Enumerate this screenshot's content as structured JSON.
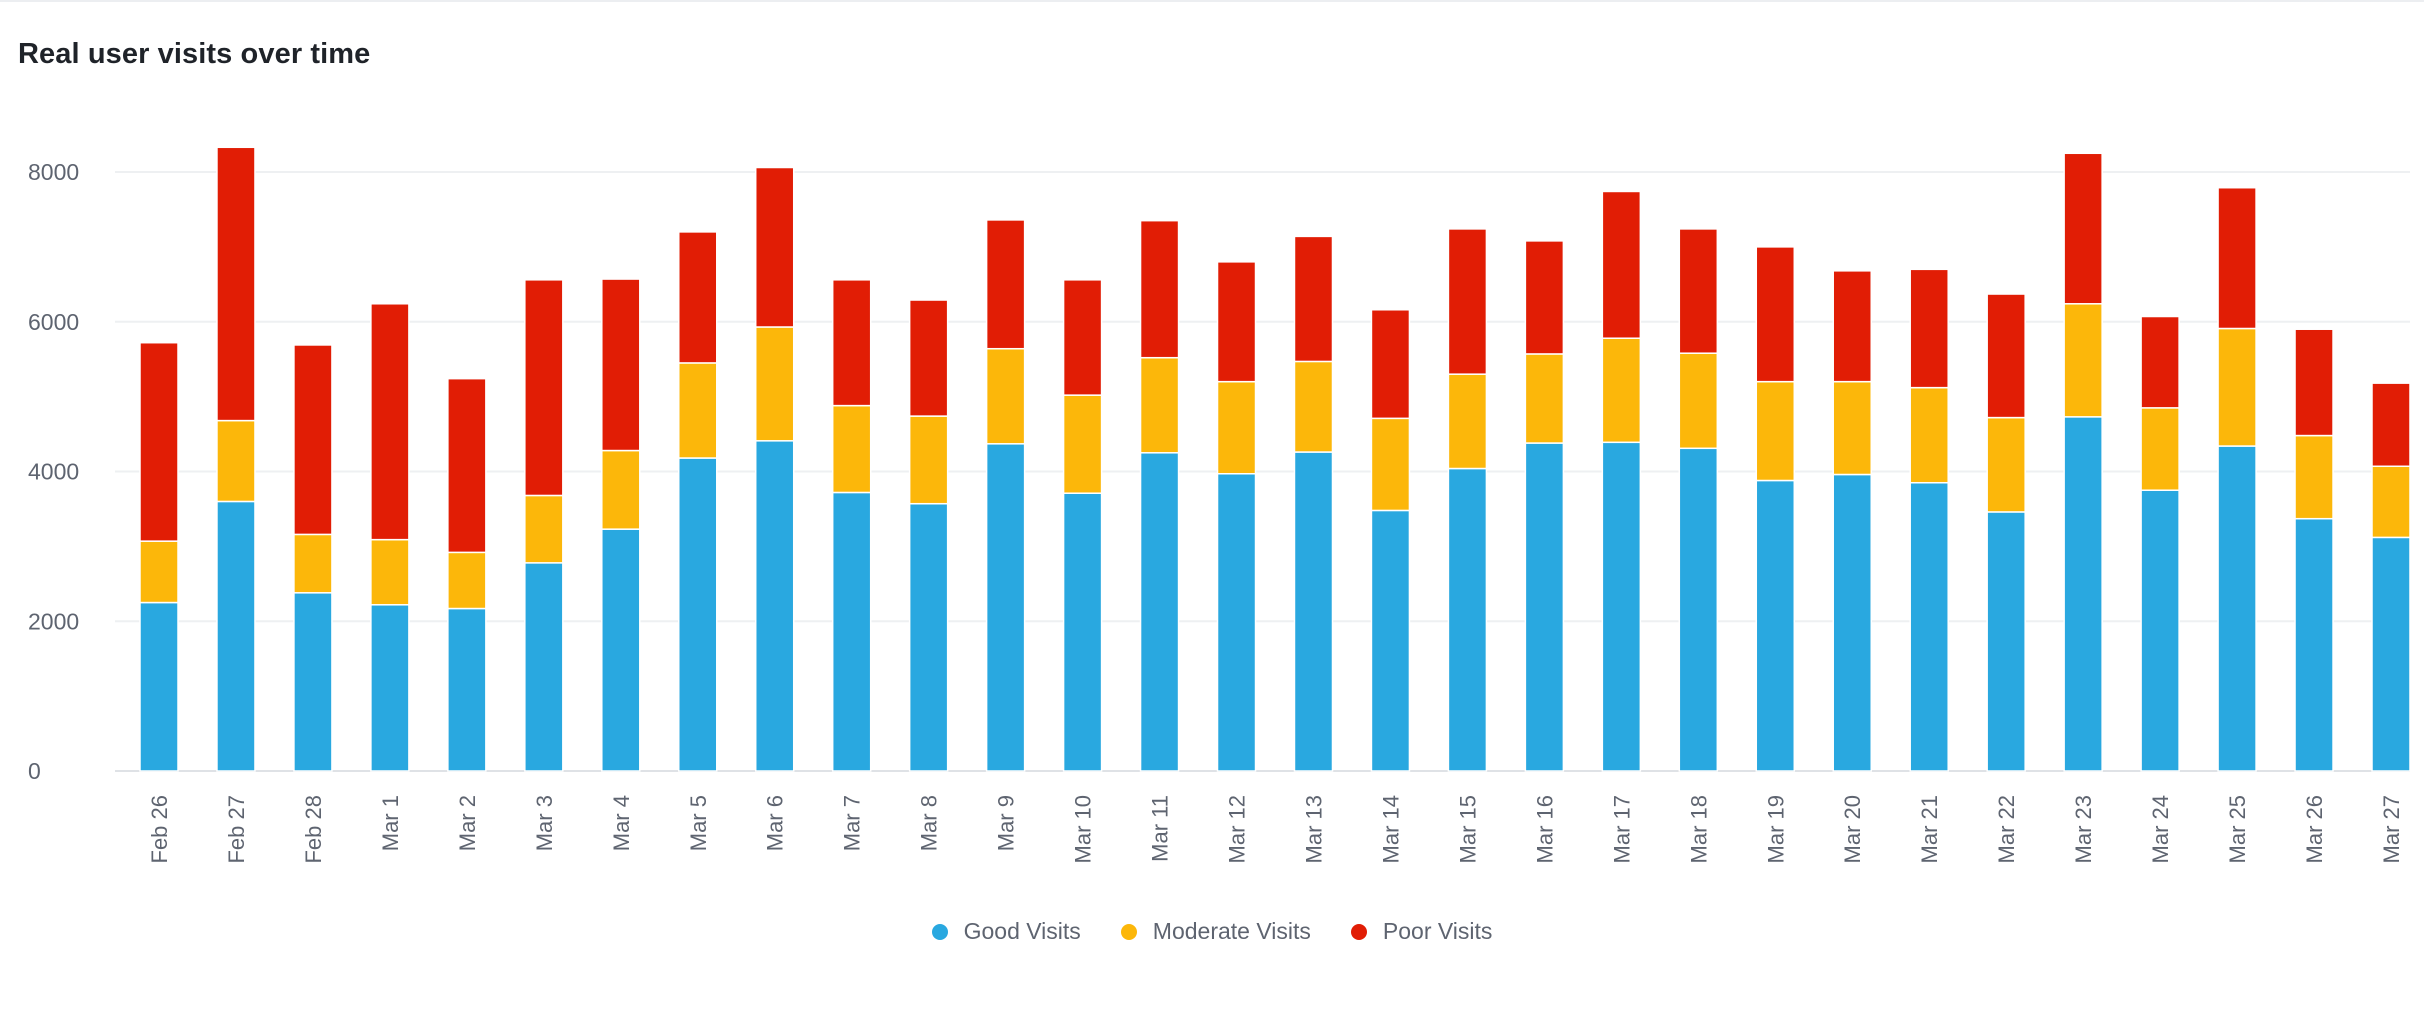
{
  "chart_data": {
    "type": "bar",
    "stacked": true,
    "title": "Real user visits over time",
    "categories": [
      "Feb 26",
      "Feb 27",
      "Feb 28",
      "Mar 1",
      "Mar 2",
      "Mar 3",
      "Mar 4",
      "Mar 5",
      "Mar 6",
      "Mar 7",
      "Mar 8",
      "Mar 9",
      "Mar 10",
      "Mar 11",
      "Mar 12",
      "Mar 13",
      "Mar 14",
      "Mar 15",
      "Mar 16",
      "Mar 17",
      "Mar 18",
      "Mar 19",
      "Mar 20",
      "Mar 21",
      "Mar 22",
      "Mar 23",
      "Mar 24",
      "Mar 25",
      "Mar 26",
      "Mar 27"
    ],
    "series": [
      {
        "name": "Good Visits",
        "color": "#29a8e0",
        "values": [
          2250,
          3600,
          2380,
          2220,
          2170,
          2780,
          3230,
          4180,
          4410,
          3720,
          3570,
          4370,
          3710,
          4250,
          3970,
          4260,
          3480,
          4040,
          4380,
          4390,
          4310,
          3880,
          3960,
          3850,
          3460,
          4730,
          3750,
          4340,
          3370,
          3120
        ]
      },
      {
        "name": "Moderate Visits",
        "color": "#fcb70a",
        "values": [
          820,
          1080,
          780,
          870,
          750,
          900,
          1050,
          1270,
          1520,
          1160,
          1170,
          1270,
          1310,
          1270,
          1230,
          1210,
          1230,
          1260,
          1190,
          1390,
          1270,
          1320,
          1240,
          1270,
          1260,
          1510,
          1100,
          1570,
          1110,
          950
        ]
      },
      {
        "name": "Poor Visits",
        "color": "#e11d05",
        "values": [
          2650,
          3650,
          2530,
          3150,
          2320,
          2880,
          2290,
          1750,
          2130,
          1680,
          1550,
          1720,
          1540,
          1830,
          1600,
          1670,
          1450,
          1940,
          1510,
          1960,
          1660,
          1800,
          1480,
          1580,
          1650,
          2010,
          1220,
          1880,
          1420,
          1110
        ]
      }
    ],
    "ylim": [
      0,
      8500
    ],
    "yticks": [
      0,
      2000,
      4000,
      6000,
      8000
    ],
    "xlabel": "",
    "ylabel": "",
    "grid": true,
    "legend": "bottom-center"
  }
}
